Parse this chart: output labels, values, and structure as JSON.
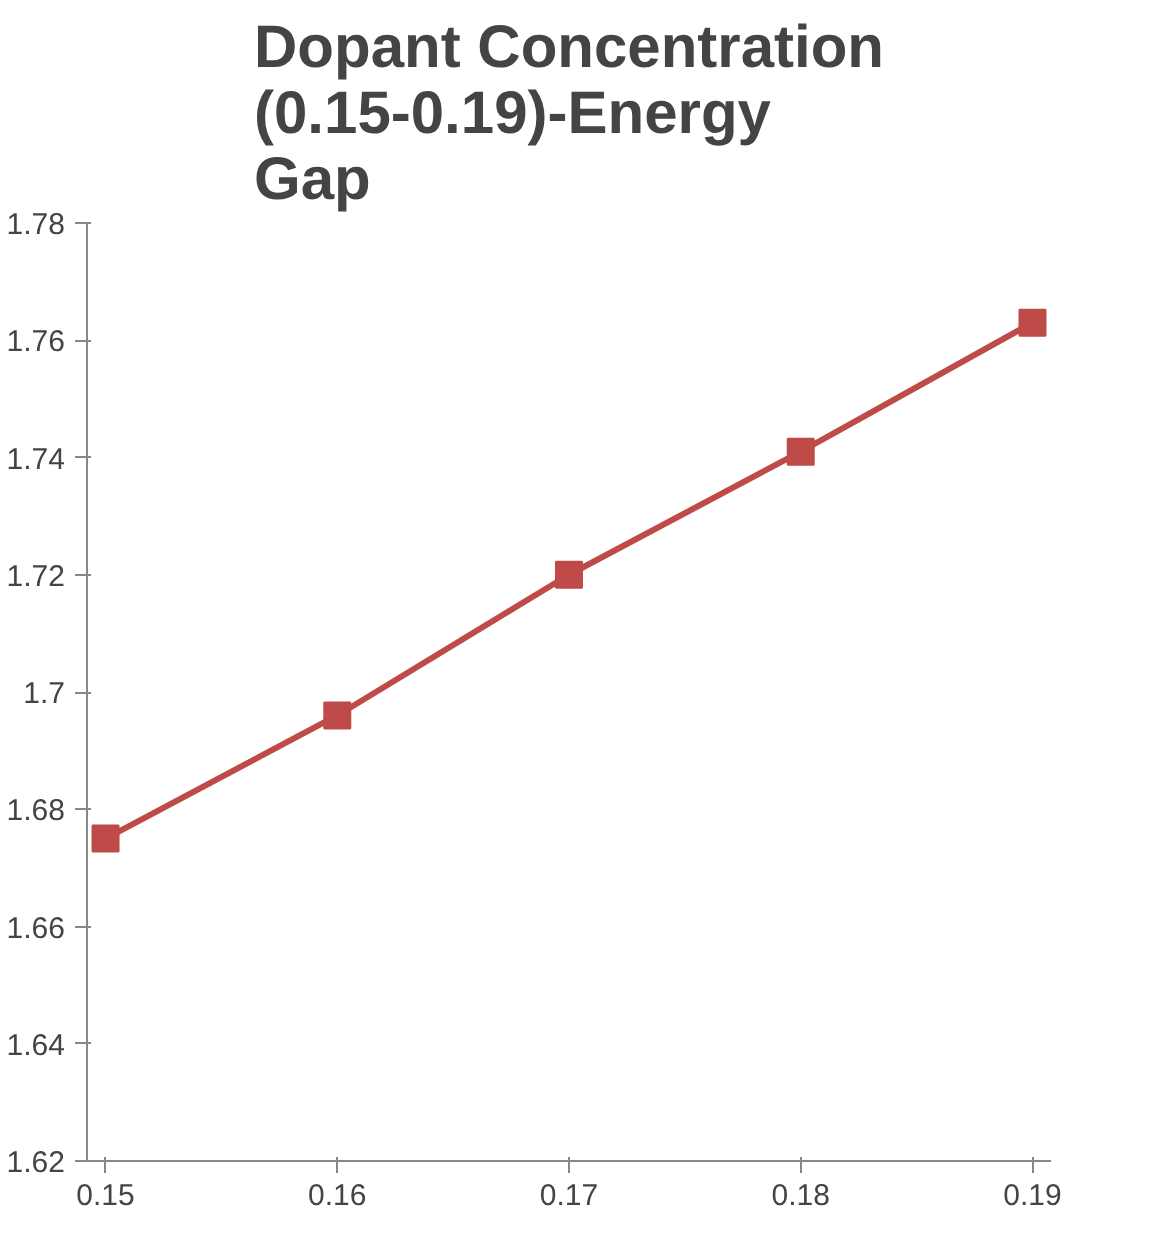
{
  "chart_data": {
    "type": "line",
    "title": "Dopant Concentration (0.15-0.19)-Energy Gap",
    "categories": [
      "0.15",
      "0.16",
      "0.17",
      "0.18",
      "0.19"
    ],
    "series": [
      {
        "color": "#be4b48",
        "values": [
          1.675,
          1.696,
          1.72,
          1.741,
          1.763
        ]
      }
    ],
    "ylim": [
      1.62,
      1.78
    ],
    "yticks": [
      1.62,
      1.64,
      1.66,
      1.68,
      1.7,
      1.72,
      1.74,
      1.76,
      1.78
    ],
    "grid": false,
    "marker": "square",
    "line_style": "solid"
  }
}
